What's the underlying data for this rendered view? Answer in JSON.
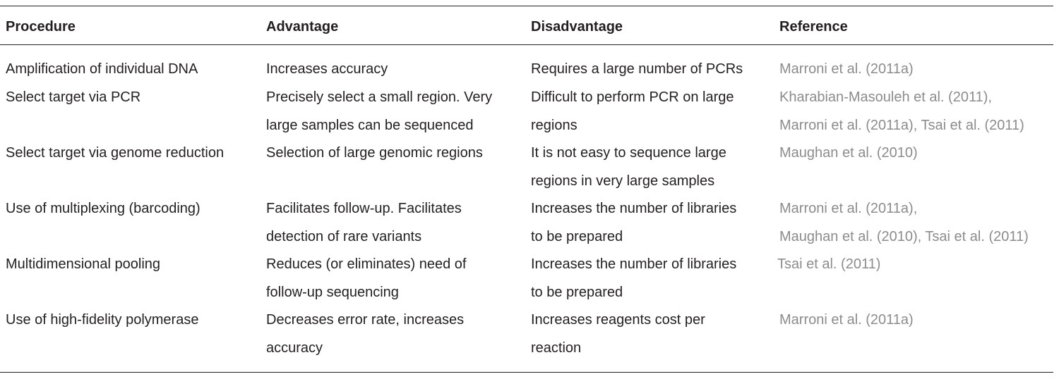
{
  "table": {
    "headers": {
      "procedure": "Procedure",
      "advantage": "Advantage",
      "disadvantage": "Disadvantage",
      "reference": "Reference"
    },
    "rows": [
      {
        "procedure": "Amplification of individual DNA",
        "advantage": "Increases accuracy",
        "disadvantage": "Requires a large number of PCRs",
        "reference": "Marroni et al. (2011a)"
      },
      {
        "procedure": "Select target via PCR",
        "advantage": "Precisely select a small region. Very\nlarge samples can be sequenced",
        "disadvantage": "Difficult to perform PCR on large\nregions",
        "reference": "Kharabian-Masouleh et al. (2011),\nMarroni et al. (2011a), Tsai et al. (2011)"
      },
      {
        "procedure": "Select target via genome reduction",
        "advantage": "Selection of large genomic regions",
        "disadvantage": "It is not easy to sequence large\nregions in very large samples",
        "reference": "Maughan et al. (2010)"
      },
      {
        "procedure": "Use of multiplexing (barcoding)",
        "advantage": "Facilitates follow-up. Facilitates\ndetection of rare variants",
        "disadvantage": "Increases the number of libraries\nto be prepared",
        "reference": "Marroni et al. (2011a),\nMaughan et al. (2010), Tsai et al. (2011)"
      },
      {
        "procedure": "Multidimensional pooling",
        "advantage": "Reduces (or eliminates) need of\nfollow-up sequencing",
        "disadvantage": "Increases the number of libraries\nto be prepared",
        "reference": "Tsai et al. (2011)"
      },
      {
        "procedure": "Use of high-fidelity polymerase",
        "advantage": "Decreases error rate, increases\naccuracy",
        "disadvantage": "Increases reagents cost per\nreaction",
        "reference": "Marroni et al. (2011a)"
      }
    ]
  }
}
